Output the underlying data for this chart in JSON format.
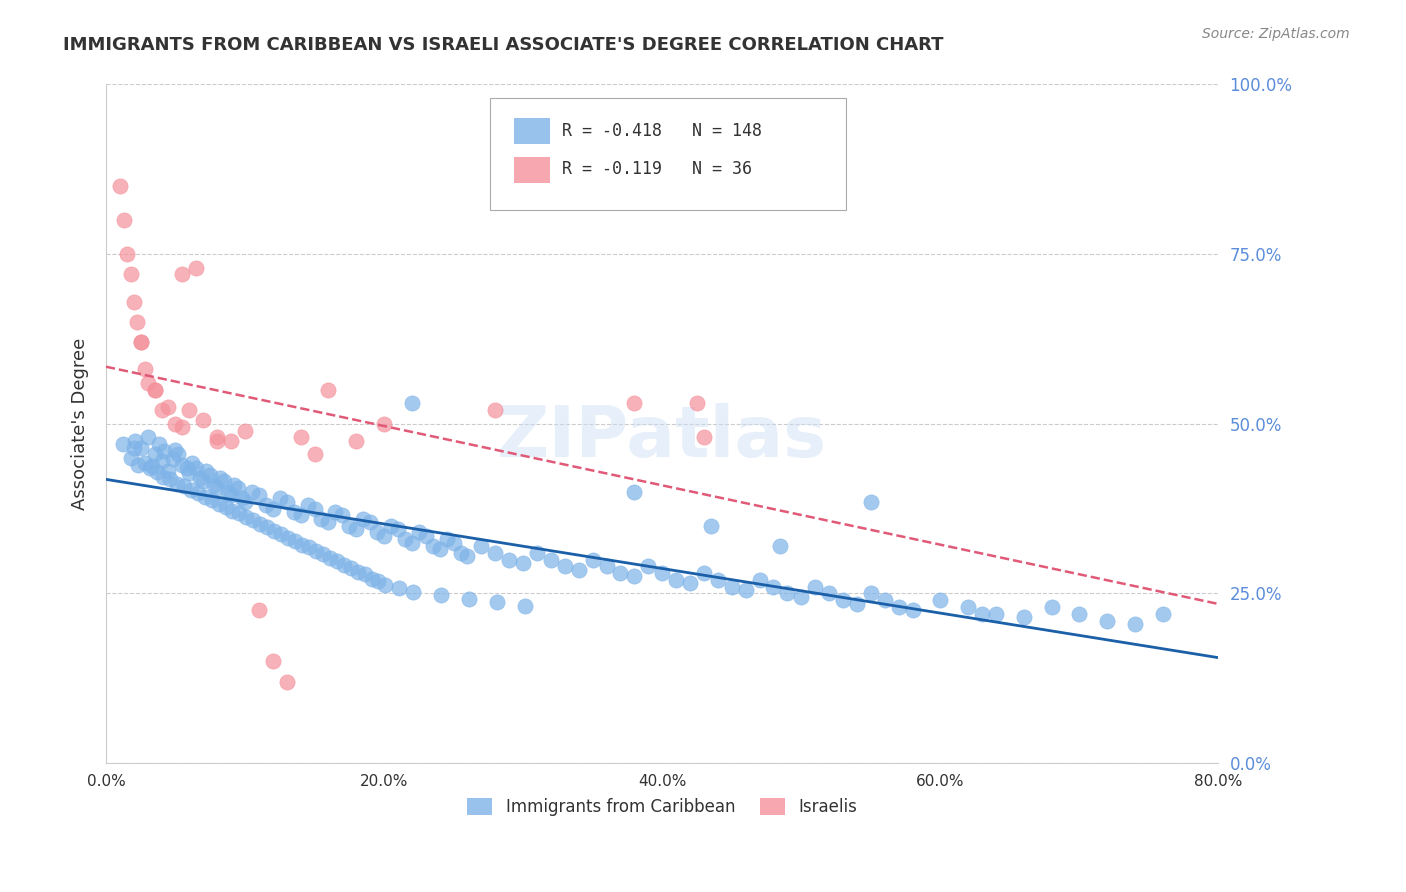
{
  "title": "IMMIGRANTS FROM CARIBBEAN VS ISRAELI ASSOCIATE'S DEGREE CORRELATION CHART",
  "source": "Source: ZipAtlas.com",
  "ylabel": "Associate's Degree",
  "xlabel_ticks": [
    "0.0%",
    "20.0%",
    "40.0%",
    "60.0%",
    "80.0%"
  ],
  "xlabel_vals": [
    0.0,
    20.0,
    40.0,
    60.0,
    80.0
  ],
  "ylabel_ticks": [
    "0.0%",
    "25.0%",
    "50.0%",
    "75.0%",
    "100.0%"
  ],
  "ylabel_vals": [
    0.0,
    25.0,
    50.0,
    75.0,
    100.0
  ],
  "xlim": [
    0.0,
    80.0
  ],
  "ylim": [
    0.0,
    100.0
  ],
  "blue_color": "#7EB3E8",
  "pink_color": "#F4919B",
  "blue_line_color": "#1A5FA8",
  "pink_line_color": "#E05A78",
  "legend_R_blue": "-0.418",
  "legend_N_blue": "148",
  "legend_R_pink": "-0.119",
  "legend_N_pink": "36",
  "legend_label_blue": "Immigrants from Caribbean",
  "legend_label_pink": "Israelis",
  "watermark": "ZIPatlas",
  "title_color": "#333333",
  "axis_label_color": "#555555",
  "tick_color_right": "#5B8DD9",
  "grid_color": "#CCCCCC",
  "blue_scatter": {
    "x": [
      1.2,
      1.8,
      2.1,
      2.3,
      2.5,
      3.0,
      3.2,
      3.5,
      3.8,
      4.0,
      4.2,
      4.5,
      4.8,
      5.0,
      5.2,
      5.5,
      5.8,
      6.0,
      6.2,
      6.5,
      6.8,
      7.0,
      7.2,
      7.5,
      7.8,
      8.0,
      8.2,
      8.5,
      8.8,
      9.0,
      9.2,
      9.5,
      9.8,
      10.0,
      10.5,
      11.0,
      11.5,
      12.0,
      12.5,
      13.0,
      13.5,
      14.0,
      14.5,
      15.0,
      15.5,
      16.0,
      16.5,
      17.0,
      17.5,
      18.0,
      18.5,
      19.0,
      19.5,
      20.0,
      20.5,
      21.0,
      21.5,
      22.0,
      22.5,
      23.0,
      23.5,
      24.0,
      24.5,
      25.0,
      25.5,
      26.0,
      27.0,
      28.0,
      29.0,
      30.0,
      31.0,
      32.0,
      33.0,
      34.0,
      35.0,
      36.0,
      37.0,
      38.0,
      39.0,
      40.0,
      41.0,
      42.0,
      43.0,
      44.0,
      45.0,
      46.0,
      47.0,
      48.0,
      49.0,
      50.0,
      51.0,
      52.0,
      53.0,
      54.0,
      55.0,
      56.0,
      57.0,
      58.0,
      60.0,
      62.0,
      64.0,
      66.0,
      68.0,
      70.0,
      72.0,
      74.0,
      76.0,
      2.0,
      2.8,
      3.3,
      3.7,
      4.1,
      4.6,
      5.1,
      5.6,
      6.1,
      6.6,
      7.1,
      7.6,
      8.1,
      8.6,
      9.1,
      9.6,
      10.1,
      10.6,
      11.1,
      11.6,
      12.1,
      12.6,
      13.1,
      13.6,
      14.1,
      14.6,
      15.1,
      15.6,
      16.1,
      16.6,
      17.1,
      17.6,
      18.1,
      18.6,
      19.1,
      19.6,
      20.1,
      21.1,
      22.1,
      24.1,
      26.1,
      28.1,
      30.1,
      55.0,
      22.0,
      38.0,
      43.5,
      48.5,
      63.0
    ],
    "y": [
      47.0,
      45.0,
      47.5,
      44.0,
      46.5,
      48.0,
      43.5,
      45.5,
      47.0,
      44.5,
      46.0,
      43.0,
      44.8,
      46.2,
      45.5,
      44.0,
      43.5,
      42.8,
      44.2,
      43.5,
      42.0,
      41.5,
      43.0,
      42.5,
      41.0,
      40.5,
      42.0,
      41.5,
      40.0,
      39.5,
      41.0,
      40.5,
      39.0,
      38.5,
      40.0,
      39.5,
      38.0,
      37.5,
      39.0,
      38.5,
      37.0,
      36.5,
      38.0,
      37.5,
      36.0,
      35.5,
      37.0,
      36.5,
      35.0,
      34.5,
      36.0,
      35.5,
      34.0,
      33.5,
      35.0,
      34.5,
      33.0,
      32.5,
      34.0,
      33.5,
      32.0,
      31.5,
      33.0,
      32.5,
      31.0,
      30.5,
      32.0,
      31.0,
      30.0,
      29.5,
      31.0,
      30.0,
      29.0,
      28.5,
      30.0,
      29.0,
      28.0,
      27.5,
      29.0,
      28.0,
      27.0,
      26.5,
      28.0,
      27.0,
      26.0,
      25.5,
      27.0,
      26.0,
      25.0,
      24.5,
      26.0,
      25.0,
      24.0,
      23.5,
      25.0,
      24.0,
      23.0,
      22.5,
      24.0,
      23.0,
      22.0,
      21.5,
      23.0,
      22.0,
      21.0,
      20.5,
      22.0,
      46.5,
      44.2,
      43.8,
      42.9,
      42.2,
      41.8,
      41.2,
      40.8,
      40.2,
      39.8,
      39.2,
      38.8,
      38.2,
      37.8,
      37.2,
      36.8,
      36.2,
      35.8,
      35.2,
      34.8,
      34.2,
      33.8,
      33.2,
      32.8,
      32.2,
      31.8,
      31.2,
      30.8,
      30.2,
      29.8,
      29.2,
      28.8,
      28.2,
      27.8,
      27.2,
      26.8,
      26.2,
      25.8,
      25.2,
      24.8,
      24.2,
      23.8,
      23.2,
      38.5,
      53.0,
      40.0,
      35.0,
      32.0,
      22.0
    ]
  },
  "pink_scatter": {
    "x": [
      1.0,
      1.3,
      1.5,
      1.8,
      2.0,
      2.2,
      2.5,
      2.8,
      3.0,
      3.5,
      4.0,
      4.5,
      5.0,
      5.5,
      6.0,
      7.0,
      8.0,
      9.0,
      10.0,
      11.0,
      12.0,
      13.0,
      14.0,
      15.0,
      16.0,
      18.0,
      20.0,
      28.0,
      38.0,
      42.5,
      43.0,
      2.5,
      5.5,
      6.5,
      3.5,
      8.0
    ],
    "y": [
      85.0,
      80.0,
      75.0,
      72.0,
      68.0,
      65.0,
      62.0,
      58.0,
      56.0,
      55.0,
      52.0,
      52.5,
      50.0,
      49.5,
      52.0,
      50.5,
      48.0,
      47.5,
      49.0,
      22.5,
      15.0,
      12.0,
      48.0,
      45.5,
      55.0,
      47.5,
      50.0,
      52.0,
      53.0,
      53.0,
      48.0,
      62.0,
      72.0,
      73.0,
      55.0,
      47.5
    ]
  }
}
